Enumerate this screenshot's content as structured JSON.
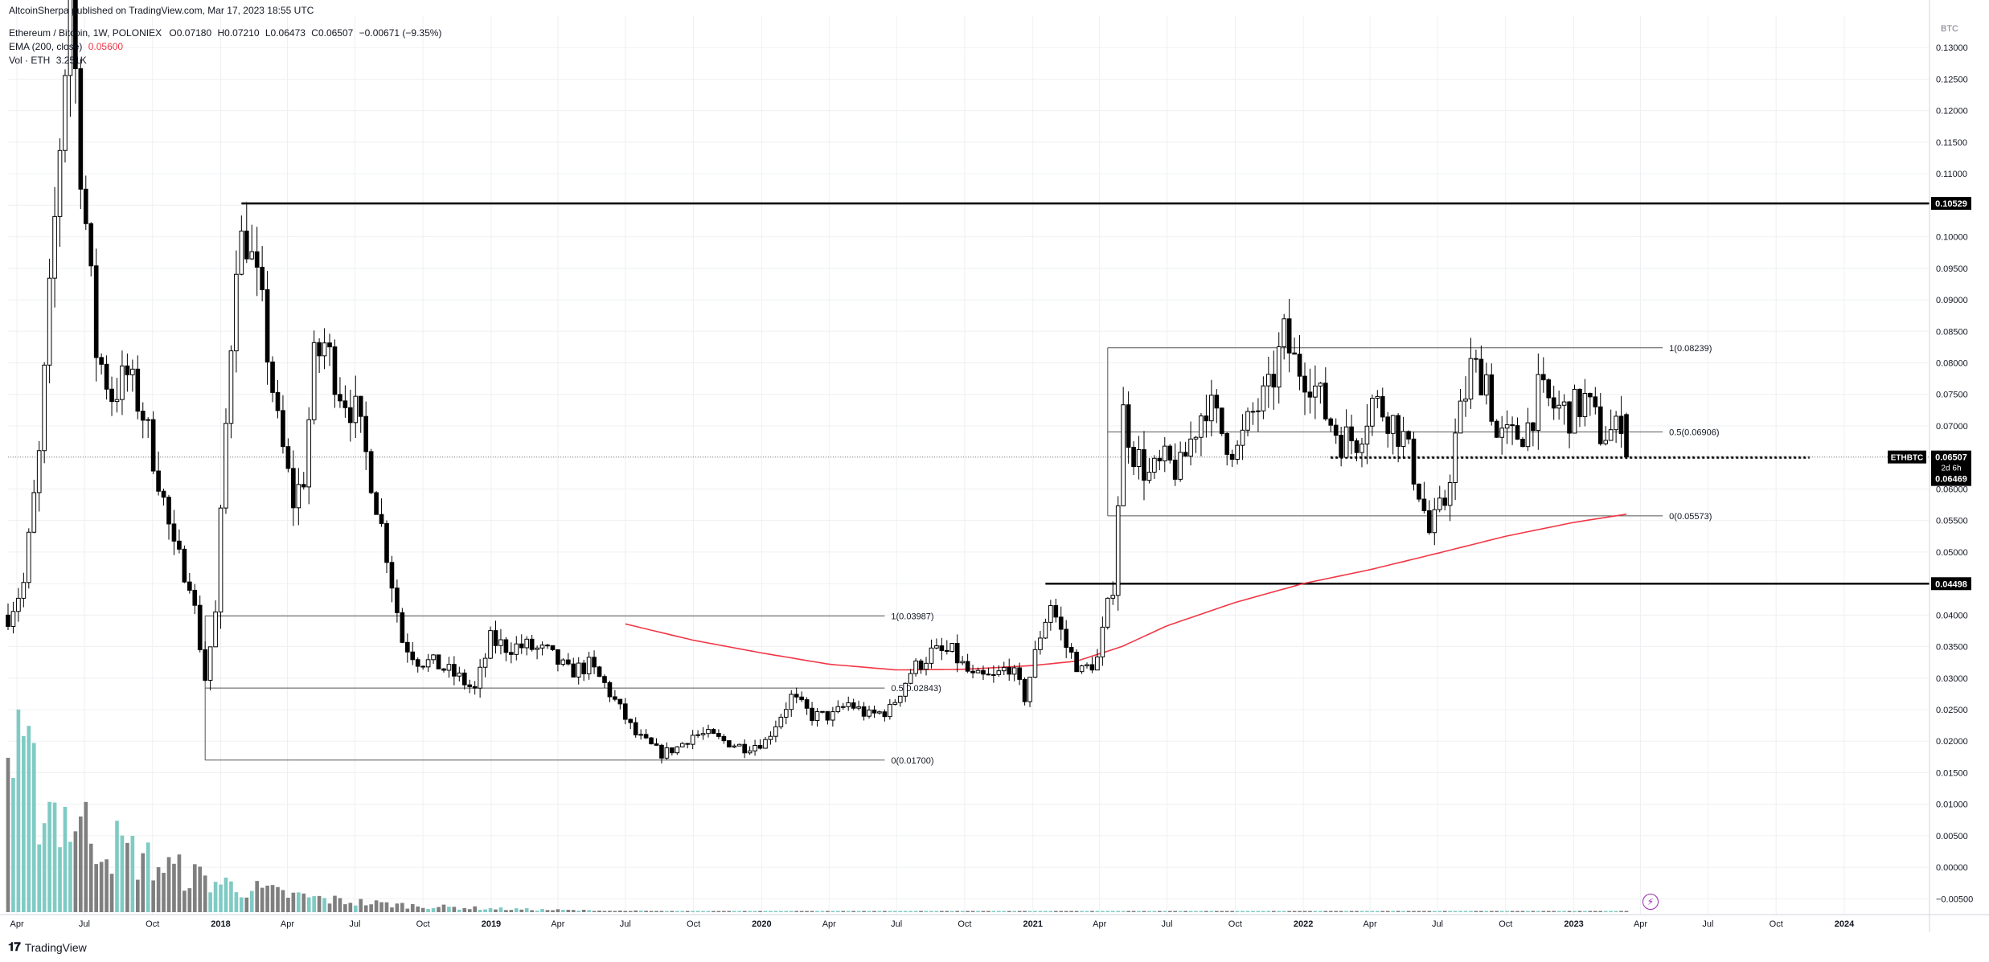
{
  "header": {
    "byline": "AltcoinSherpa published on TradingView.com, Mar 17, 2023 18:55 UTC",
    "symbol": "Ethereum / Bitcoin, 1W, POLONIEX",
    "ohlc": {
      "o": "O0.07180",
      "h": "H0.07210",
      "l": "L0.06473",
      "c": "C0.06507",
      "chg": "−0.00671 (−9.35%)"
    },
    "ema_label": "EMA (200, close)",
    "ema_value": "0.05600",
    "vol_label": "Vol · ETH",
    "vol_value": "3.251K"
  },
  "footer": {
    "brand": "TradingView"
  },
  "colors": {
    "up": "#ffffff",
    "down": "#000000",
    "ema": "#f23645",
    "vol_up": "#7fcbc4",
    "vol_down": "#7f7f7f",
    "grid": "#eef0f3",
    "text": "#131722"
  },
  "chart_data": {
    "type": "candlestick",
    "symbol": "ETHBTC",
    "timeframe": "1W",
    "y_axis": {
      "unit": "BTC",
      "range": [
        -0.0075,
        0.135
      ],
      "ticks": [
        "0.13000",
        "0.12500",
        "0.12000",
        "0.11500",
        "0.11000",
        "0.10500",
        "0.10000",
        "0.09500",
        "0.09000",
        "0.08500",
        "0.08000",
        "0.07500",
        "0.07000",
        "0.06500",
        "0.06000",
        "0.05500",
        "0.05000",
        "0.04500",
        "0.04000",
        "0.03500",
        "0.03000",
        "0.02500",
        "0.02000",
        "0.01500",
        "0.01000",
        "0.00500",
        "0.00000",
        "−0.00500"
      ],
      "tick_values": [
        0.13,
        0.125,
        0.12,
        0.115,
        0.11,
        0.105,
        0.1,
        0.095,
        0.09,
        0.085,
        0.08,
        0.075,
        0.07,
        0.065,
        0.06,
        0.055,
        0.05,
        0.045,
        0.04,
        0.035,
        0.03,
        0.025,
        0.02,
        0.015,
        0.01,
        0.005,
        0.0,
        -0.005
      ]
    },
    "x_axis": {
      "ticks": [
        "Apr",
        "Jul",
        "Oct",
        "2018",
        "Apr",
        "Jul",
        "Oct",
        "2019",
        "Apr",
        "Jul",
        "Oct",
        "2020",
        "Apr",
        "Jul",
        "Oct",
        "2021",
        "Apr",
        "Jul",
        "Oct",
        "2022",
        "Apr",
        "Jul",
        "Oct",
        "2023",
        "Apr",
        "Jul",
        "Oct",
        "2024"
      ],
      "tick_dates": [
        "2017-04-01",
        "2017-07-01",
        "2017-10-01",
        "2018-01-01",
        "2018-04-01",
        "2018-07-01",
        "2018-10-01",
        "2019-01-01",
        "2019-04-01",
        "2019-07-01",
        "2019-10-01",
        "2020-01-01",
        "2020-04-01",
        "2020-07-01",
        "2020-10-01",
        "2021-01-01",
        "2021-04-01",
        "2021-07-01",
        "2021-10-01",
        "2022-01-01",
        "2022-04-01",
        "2022-07-01",
        "2022-10-01",
        "2023-01-01",
        "2023-04-01",
        "2023-07-01",
        "2023-10-01",
        "2024-01-01"
      ],
      "range": [
        "2017-03-20",
        "2024-04-25"
      ],
      "data_end": "2023-03-13"
    },
    "price_anchors": [
      [
        "2017-03-20",
        0.04
      ],
      [
        "2017-04-10",
        0.045
      ],
      [
        "2017-05-01",
        0.065
      ],
      [
        "2017-05-29",
        0.115
      ],
      [
        "2017-06-12",
        0.14
      ],
      [
        "2017-06-26",
        0.112
      ],
      [
        "2017-07-17",
        0.082
      ],
      [
        "2017-08-07",
        0.075
      ],
      [
        "2017-08-28",
        0.078
      ],
      [
        "2017-09-18",
        0.072
      ],
      [
        "2017-10-09",
        0.062
      ],
      [
        "2017-10-30",
        0.05
      ],
      [
        "2017-11-20",
        0.046
      ],
      [
        "2017-12-11",
        0.03
      ],
      [
        "2017-12-25",
        0.04
      ],
      [
        "2018-01-08",
        0.07
      ],
      [
        "2018-01-22",
        0.098
      ],
      [
        "2018-02-05",
        0.1
      ],
      [
        "2018-02-26",
        0.088
      ],
      [
        "2018-03-19",
        0.07
      ],
      [
        "2018-04-09",
        0.058
      ],
      [
        "2018-04-23",
        0.062
      ],
      [
        "2018-05-07",
        0.08
      ],
      [
        "2018-05-21",
        0.083
      ],
      [
        "2018-06-11",
        0.076
      ],
      [
        "2018-07-02",
        0.072
      ],
      [
        "2018-07-23",
        0.062
      ],
      [
        "2018-08-13",
        0.05
      ],
      [
        "2018-09-03",
        0.036
      ],
      [
        "2018-09-24",
        0.033
      ],
      [
        "2018-10-22",
        0.032
      ],
      [
        "2018-11-19",
        0.03
      ],
      [
        "2018-12-10",
        0.028
      ],
      [
        "2018-12-31",
        0.036
      ],
      [
        "2019-01-21",
        0.035
      ],
      [
        "2019-02-18",
        0.035
      ],
      [
        "2019-03-18",
        0.034
      ],
      [
        "2019-04-15",
        0.031
      ],
      [
        "2019-05-13",
        0.032
      ],
      [
        "2019-06-03",
        0.029
      ],
      [
        "2019-06-24",
        0.025
      ],
      [
        "2019-07-15",
        0.021
      ],
      [
        "2019-08-19",
        0.018
      ],
      [
        "2019-09-09",
        0.019
      ],
      [
        "2019-09-30",
        0.021
      ],
      [
        "2019-10-21",
        0.021
      ],
      [
        "2019-11-11",
        0.02
      ],
      [
        "2019-12-09",
        0.019
      ],
      [
        "2020-01-06",
        0.02
      ],
      [
        "2020-02-10",
        0.027
      ],
      [
        "2020-03-09",
        0.024
      ],
      [
        "2020-04-06",
        0.024
      ],
      [
        "2020-04-27",
        0.026
      ],
      [
        "2020-05-25",
        0.024
      ],
      [
        "2020-06-22",
        0.025
      ],
      [
        "2020-07-20",
        0.031
      ],
      [
        "2020-08-17",
        0.034
      ],
      [
        "2020-09-14",
        0.034
      ],
      [
        "2020-10-12",
        0.03
      ],
      [
        "2020-11-09",
        0.03
      ],
      [
        "2020-11-30",
        0.032
      ],
      [
        "2020-12-21",
        0.027
      ],
      [
        "2021-01-11",
        0.037
      ],
      [
        "2021-01-25",
        0.042
      ],
      [
        "2021-02-15",
        0.035
      ],
      [
        "2021-03-08",
        0.031
      ],
      [
        "2021-03-29",
        0.033
      ],
      [
        "2021-04-19",
        0.045
      ],
      [
        "2021-05-03",
        0.072
      ],
      [
        "2021-05-17",
        0.066
      ],
      [
        "2021-06-07",
        0.062
      ],
      [
        "2021-06-28",
        0.064
      ],
      [
        "2021-07-19",
        0.063
      ],
      [
        "2021-08-09",
        0.07
      ],
      [
        "2021-08-23",
        0.074
      ],
      [
        "2021-09-13",
        0.069
      ],
      [
        "2021-10-04",
        0.066
      ],
      [
        "2021-10-25",
        0.072
      ],
      [
        "2021-11-15",
        0.075
      ],
      [
        "2021-12-06",
        0.084
      ],
      [
        "2021-12-20",
        0.08
      ],
      [
        "2022-01-10",
        0.078
      ],
      [
        "2022-01-31",
        0.072
      ],
      [
        "2022-02-21",
        0.068
      ],
      [
        "2022-03-14",
        0.068
      ],
      [
        "2022-04-04",
        0.074
      ],
      [
        "2022-04-25",
        0.072
      ],
      [
        "2022-05-16",
        0.068
      ],
      [
        "2022-06-06",
        0.06
      ],
      [
        "2022-06-20",
        0.053
      ],
      [
        "2022-07-11",
        0.058
      ],
      [
        "2022-07-25",
        0.068
      ],
      [
        "2022-08-15",
        0.079
      ],
      [
        "2022-09-05",
        0.078
      ],
      [
        "2022-09-19",
        0.068
      ],
      [
        "2022-10-10",
        0.068
      ],
      [
        "2022-10-31",
        0.07
      ],
      [
        "2022-11-14",
        0.075
      ],
      [
        "2022-12-05",
        0.073
      ],
      [
        "2022-12-26",
        0.072
      ],
      [
        "2023-01-16",
        0.074
      ],
      [
        "2023-02-06",
        0.069
      ],
      [
        "2023-02-27",
        0.069
      ],
      [
        "2023-03-06",
        0.0718
      ],
      [
        "2023-03-13",
        0.06507
      ]
    ],
    "ema200_anchors": [
      [
        "2019-07-01",
        0.0386
      ],
      [
        "2019-10-01",
        0.036
      ],
      [
        "2020-01-01",
        0.034
      ],
      [
        "2020-04-01",
        0.0322
      ],
      [
        "2020-07-01",
        0.0313
      ],
      [
        "2020-10-01",
        0.0314
      ],
      [
        "2021-01-01",
        0.032
      ],
      [
        "2021-03-01",
        0.0327
      ],
      [
        "2021-05-01",
        0.035
      ],
      [
        "2021-07-01",
        0.0383
      ],
      [
        "2021-10-01",
        0.042
      ],
      [
        "2022-01-01",
        0.045
      ],
      [
        "2022-04-01",
        0.0472
      ],
      [
        "2022-07-01",
        0.0498
      ],
      [
        "2022-10-01",
        0.0525
      ],
      [
        "2023-01-01",
        0.0547
      ],
      [
        "2023-03-13",
        0.056
      ]
    ],
    "horizontal_lines": [
      {
        "value": 0.10529,
        "label": "0.10529",
        "from": "2018-01-29",
        "to": "2024-04-25",
        "bold": true
      },
      {
        "value": 0.04498,
        "label": "0.04498",
        "from": "2021-01-18",
        "to": "2024-04-25",
        "bold": true
      }
    ],
    "fib_sets": [
      {
        "from": "2017-12-11",
        "to": "2020-06-15",
        "levels": [
          {
            "value": 0.03987,
            "label": "1(0.03987)"
          },
          {
            "value": 0.02843,
            "label": "0.5(0.02843)"
          },
          {
            "value": 0.017,
            "label": "0(0.01700)"
          }
        ]
      },
      {
        "from": "2021-04-12",
        "to": "2023-05-01",
        "levels": [
          {
            "value": 0.08239,
            "label": "1(0.08239)"
          },
          {
            "value": 0.06906,
            "label": "0.5(0.06906)"
          },
          {
            "value": 0.05573,
            "label": "0(0.05573)"
          }
        ]
      }
    ],
    "dotted_support": {
      "value": 0.065,
      "from": "2022-02-07",
      "to": "2023-11-15"
    },
    "last_price": {
      "symbol": "ETHBTC",
      "value": "0.06507",
      "countdown": "2d 6h",
      "prev_label": "0.06469"
    }
  }
}
